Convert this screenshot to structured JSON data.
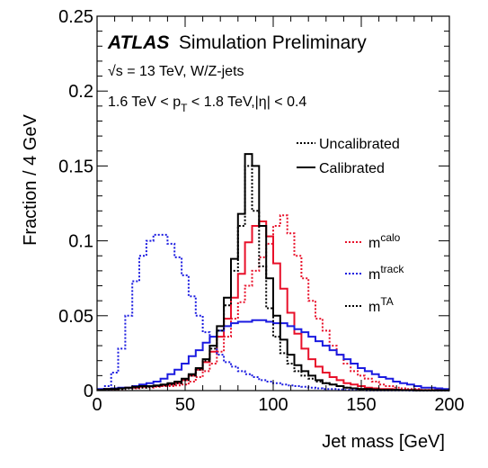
{
  "chart_data": {
    "type": "line",
    "title": "",
    "atlas_label": {
      "bold": "ATLAS",
      "rest": "Simulation Preliminary"
    },
    "info_lines": {
      "line1": "√s = 13 TeV, W/Z-jets",
      "line2": "1.6 TeV < p  < 1.8 TeV,|η| < 0.4",
      "line2_parts": {
        "a": "1.6 TeV < p",
        "sub": "T",
        "b": " < 1.8 TeV,|η| < 0.4"
      }
    },
    "xlabel": "Jet mass [GeV]",
    "ylabel": "Fraction  / 4 GeV",
    "xlim": [
      0,
      200
    ],
    "ylim": [
      0,
      0.25
    ],
    "x_ticks": [
      "0",
      "50",
      "100",
      "150",
      "200"
    ],
    "y_ticks": [
      "0",
      "0.05",
      "0.1",
      "0.15",
      "0.2",
      "0.25"
    ],
    "style_legend": [
      {
        "label": "Uncalibrated",
        "dash": "dotted"
      },
      {
        "label": "Calibrated",
        "dash": "solid"
      }
    ],
    "color_legend": [
      {
        "base": "m",
        "sup": "calo",
        "color": "#e8102a"
      },
      {
        "base": "m",
        "sup": "track",
        "color": "#1b1be0"
      },
      {
        "base": "m",
        "sup": "TA",
        "color": "#000000"
      }
    ],
    "bin_width": 4,
    "series": [
      {
        "name": "m calo uncalibrated",
        "color": "#e8102a",
        "dash": "dotted",
        "bin_start": 0,
        "values": [
          0.0005,
          0.0005,
          0.001,
          0.001,
          0.0015,
          0.0015,
          0.002,
          0.002,
          0.0025,
          0.003,
          0.003,
          0.0035,
          0.004,
          0.006,
          0.009,
          0.013,
          0.018,
          0.026,
          0.036,
          0.048,
          0.059,
          0.07,
          0.08,
          0.089,
          0.098,
          0.11,
          0.117,
          0.105,
          0.09,
          0.075,
          0.06,
          0.048,
          0.04,
          0.03,
          0.024,
          0.018,
          0.013,
          0.01,
          0.008,
          0.006,
          0.004,
          0.003,
          0.002,
          0.0015,
          0.001,
          0.001,
          0.0005,
          0.0005,
          0.0005,
          0.0005
        ]
      },
      {
        "name": "m calo calibrated",
        "color": "#e8102a",
        "dash": "solid",
        "bin_start": 0,
        "values": [
          0.0005,
          0.001,
          0.001,
          0.0015,
          0.002,
          0.002,
          0.0025,
          0.003,
          0.003,
          0.0035,
          0.004,
          0.005,
          0.007,
          0.01,
          0.014,
          0.019,
          0.026,
          0.036,
          0.048,
          0.062,
          0.078,
          0.099,
          0.11,
          0.113,
          0.103,
          0.085,
          0.068,
          0.052,
          0.038,
          0.028,
          0.021,
          0.016,
          0.012,
          0.009,
          0.007,
          0.005,
          0.004,
          0.003,
          0.002,
          0.0015,
          0.001,
          0.001,
          0.0005,
          0.0005,
          0.0005,
          0.0005,
          0.0003,
          0.0003,
          0.0003,
          0.0003
        ]
      },
      {
        "name": "m track uncalibrated",
        "color": "#1b1be0",
        "dash": "dotted",
        "bin_start": 0,
        "values": [
          0.0005,
          0.003,
          0.012,
          0.028,
          0.05,
          0.073,
          0.09,
          0.1,
          0.104,
          0.104,
          0.098,
          0.089,
          0.077,
          0.063,
          0.05,
          0.039,
          0.03,
          0.024,
          0.019,
          0.016,
          0.013,
          0.011,
          0.009,
          0.007,
          0.006,
          0.005,
          0.004,
          0.0035,
          0.003,
          0.0025,
          0.002,
          0.0015,
          0.001,
          0.001,
          0.0007,
          0.0005,
          0.0004,
          0.0003,
          0.0002,
          0.0002,
          0.0001,
          0.0001,
          0.0001,
          0.0001,
          0,
          0,
          0,
          0,
          0,
          0
        ]
      },
      {
        "name": "m track calibrated",
        "color": "#1b1be0",
        "dash": "solid",
        "bin_start": 0,
        "values": [
          0.001,
          0.001,
          0.0015,
          0.002,
          0.002,
          0.003,
          0.004,
          0.005,
          0.006,
          0.008,
          0.011,
          0.014,
          0.018,
          0.023,
          0.027,
          0.032,
          0.036,
          0.04,
          0.043,
          0.045,
          0.046,
          0.046,
          0.047,
          0.047,
          0.046,
          0.045,
          0.045,
          0.043,
          0.041,
          0.039,
          0.036,
          0.033,
          0.03,
          0.027,
          0.024,
          0.021,
          0.018,
          0.015,
          0.013,
          0.011,
          0.009,
          0.008,
          0.006,
          0.005,
          0.004,
          0.003,
          0.002,
          0.002,
          0.0015,
          0.001
        ]
      },
      {
        "name": "m TA uncalibrated",
        "color": "#000000",
        "dash": "dotted",
        "bin_start": 0,
        "values": [
          0.0005,
          0.0005,
          0.001,
          0.001,
          0.0015,
          0.002,
          0.002,
          0.0025,
          0.003,
          0.0035,
          0.004,
          0.005,
          0.007,
          0.01,
          0.014,
          0.02,
          0.028,
          0.04,
          0.057,
          0.08,
          0.11,
          0.15,
          0.12,
          0.083,
          0.055,
          0.036,
          0.025,
          0.018,
          0.013,
          0.01,
          0.008,
          0.006,
          0.005,
          0.004,
          0.003,
          0.002,
          0.0015,
          0.001,
          0.001,
          0.0007,
          0.0005,
          0.0005,
          0.0004,
          0.0003,
          0.0003,
          0.0002,
          0.0002,
          0.0002,
          0.0001,
          0.0001
        ]
      },
      {
        "name": "m TA calibrated",
        "color": "#000000",
        "dash": "solid",
        "bin_start": 0,
        "values": [
          0.0005,
          0.001,
          0.001,
          0.0015,
          0.002,
          0.0025,
          0.003,
          0.003,
          0.0035,
          0.004,
          0.005,
          0.006,
          0.008,
          0.011,
          0.015,
          0.021,
          0.03,
          0.043,
          0.062,
          0.088,
          0.118,
          0.158,
          0.15,
          0.11,
          0.075,
          0.05,
          0.034,
          0.024,
          0.017,
          0.013,
          0.01,
          0.007,
          0.005,
          0.004,
          0.003,
          0.002,
          0.0015,
          0.001,
          0.001,
          0.0007,
          0.0005,
          0.0005,
          0.0004,
          0.0003,
          0.0003,
          0.0002,
          0.0002,
          0.0002,
          0.0001,
          0.0001
        ]
      }
    ]
  }
}
